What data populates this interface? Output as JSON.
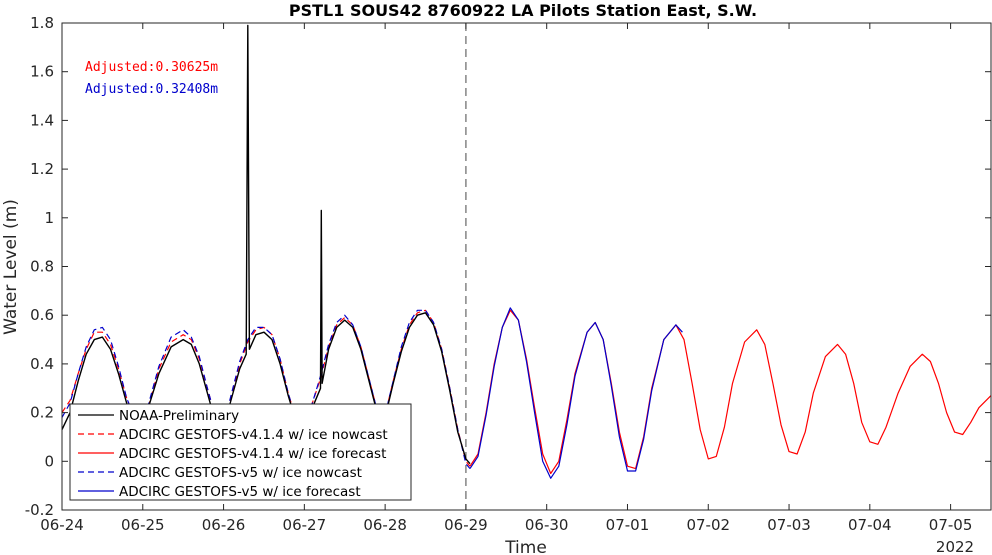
{
  "chart_data": {
    "type": "line",
    "title": "PSTL1 SOUS42 8760922 LA Pilots Station East, S.W.",
    "xlabel": "Time",
    "ylabel": "Water Level (m)",
    "x_start": "06-24",
    "x_range_days": [
      0,
      11.5
    ],
    "xtick_labels": [
      "06-24",
      "06-25",
      "06-26",
      "06-27",
      "06-28",
      "06-29",
      "06-30",
      "07-01",
      "07-02",
      "07-03",
      "07-04",
      "07-05"
    ],
    "xtick_days": [
      0,
      1,
      2,
      3,
      4,
      5,
      6,
      7,
      8,
      9,
      10,
      11
    ],
    "x_year_label": "2022",
    "ylim": [
      -0.2,
      1.8
    ],
    "yticks": [
      -0.2,
      0,
      0.2,
      0.4,
      0.6,
      0.8,
      1,
      1.2,
      1.4,
      1.6,
      1.8
    ],
    "ytick_labels": [
      "-0.2",
      "0",
      "0.2",
      "0.4",
      "0.6",
      "0.8",
      "1",
      "1.2",
      "1.4",
      "1.6",
      "1.8"
    ],
    "vline_day": 5,
    "grid": false,
    "legend_position": "bottom-left",
    "annotations": [
      {
        "text": "Adjusted:0.30625m",
        "color": "#ff0000"
      },
      {
        "text": "Adjusted:0.32408m",
        "color": "#0000cc"
      }
    ],
    "series": [
      {
        "name": "NOAA-Preliminary",
        "color": "#000000",
        "style": "solid",
        "points": [
          [
            0,
            0.13
          ],
          [
            0.1,
            0.2
          ],
          [
            0.2,
            0.33
          ],
          [
            0.3,
            0.44
          ],
          [
            0.4,
            0.5
          ],
          [
            0.5,
            0.51
          ],
          [
            0.6,
            0.46
          ],
          [
            0.7,
            0.36
          ],
          [
            0.8,
            0.24
          ],
          [
            0.95,
            0.12
          ],
          [
            1.05,
            0.2
          ],
          [
            1.2,
            0.36
          ],
          [
            1.35,
            0.47
          ],
          [
            1.5,
            0.5
          ],
          [
            1.6,
            0.48
          ],
          [
            1.7,
            0.4
          ],
          [
            1.8,
            0.28
          ],
          [
            1.9,
            0.16
          ],
          [
            2.0,
            0.14
          ],
          [
            2.1,
            0.26
          ],
          [
            2.2,
            0.38
          ],
          [
            2.28,
            0.44
          ],
          [
            2.3,
            1.79
          ],
          [
            2.32,
            0.46
          ],
          [
            2.4,
            0.52
          ],
          [
            2.5,
            0.53
          ],
          [
            2.6,
            0.5
          ],
          [
            2.7,
            0.4
          ],
          [
            2.8,
            0.27
          ],
          [
            2.9,
            0.16
          ],
          [
            3.0,
            0.15
          ],
          [
            3.1,
            0.22
          ],
          [
            3.2,
            0.3
          ],
          [
            3.21,
            1.03
          ],
          [
            3.22,
            0.32
          ],
          [
            3.3,
            0.46
          ],
          [
            3.4,
            0.55
          ],
          [
            3.5,
            0.58
          ],
          [
            3.6,
            0.55
          ],
          [
            3.7,
            0.46
          ],
          [
            3.8,
            0.33
          ],
          [
            3.9,
            0.2
          ],
          [
            4.0,
            0.18
          ],
          [
            4.1,
            0.32
          ],
          [
            4.2,
            0.45
          ],
          [
            4.3,
            0.55
          ],
          [
            4.4,
            0.6
          ],
          [
            4.5,
            0.61
          ],
          [
            4.6,
            0.56
          ],
          [
            4.7,
            0.45
          ],
          [
            4.8,
            0.29
          ],
          [
            4.9,
            0.12
          ],
          [
            5.0,
            0.01
          ],
          [
            5.05,
            -0.01
          ]
        ]
      },
      {
        "name": "ADCIRC GESTOFS-v4.1.4 w/ ice nowcast",
        "color": "#ff0000",
        "style": "dashed",
        "points": [
          [
            0,
            0.2
          ],
          [
            0.1,
            0.25
          ],
          [
            0.2,
            0.36
          ],
          [
            0.3,
            0.46
          ],
          [
            0.4,
            0.53
          ],
          [
            0.5,
            0.53
          ],
          [
            0.6,
            0.48
          ],
          [
            0.7,
            0.38
          ],
          [
            0.8,
            0.26
          ],
          [
            0.95,
            0.14
          ],
          [
            1.05,
            0.2
          ],
          [
            1.2,
            0.38
          ],
          [
            1.35,
            0.49
          ],
          [
            1.5,
            0.52
          ],
          [
            1.6,
            0.5
          ],
          [
            1.7,
            0.42
          ],
          [
            1.8,
            0.3
          ],
          [
            1.9,
            0.18
          ],
          [
            2.0,
            0.15
          ],
          [
            2.1,
            0.27
          ],
          [
            2.2,
            0.4
          ],
          [
            2.3,
            0.49
          ],
          [
            2.4,
            0.54
          ],
          [
            2.5,
            0.55
          ],
          [
            2.6,
            0.52
          ],
          [
            2.7,
            0.42
          ],
          [
            2.8,
            0.28
          ],
          [
            2.9,
            0.17
          ],
          [
            3.0,
            0.16
          ],
          [
            3.1,
            0.24
          ],
          [
            3.2,
            0.34
          ],
          [
            3.3,
            0.47
          ],
          [
            3.4,
            0.56
          ],
          [
            3.5,
            0.59
          ],
          [
            3.6,
            0.56
          ],
          [
            3.7,
            0.47
          ],
          [
            3.8,
            0.34
          ],
          [
            3.9,
            0.21
          ],
          [
            4.0,
            0.19
          ],
          [
            4.1,
            0.33
          ],
          [
            4.2,
            0.46
          ],
          [
            4.3,
            0.56
          ],
          [
            4.4,
            0.61
          ],
          [
            4.5,
            0.62
          ],
          [
            4.6,
            0.57
          ],
          [
            4.7,
            0.46
          ],
          [
            4.8,
            0.3
          ],
          [
            4.9,
            0.13
          ],
          [
            5.0,
            0.0
          ],
          [
            5.05,
            -0.02
          ]
        ]
      },
      {
        "name": "ADCIRC GESTOFS-v4.1.4 w/ ice forecast",
        "color": "#ff0000",
        "style": "solid",
        "points": [
          [
            5.05,
            -0.02
          ],
          [
            5.15,
            0.03
          ],
          [
            5.25,
            0.2
          ],
          [
            5.35,
            0.4
          ],
          [
            5.45,
            0.55
          ],
          [
            5.55,
            0.62
          ],
          [
            5.65,
            0.58
          ],
          [
            5.75,
            0.42
          ],
          [
            5.85,
            0.22
          ],
          [
            5.95,
            0.03
          ],
          [
            6.05,
            -0.05
          ],
          [
            6.15,
            0.0
          ],
          [
            6.25,
            0.17
          ],
          [
            6.35,
            0.36
          ],
          [
            6.5,
            0.53
          ],
          [
            6.6,
            0.57
          ],
          [
            6.7,
            0.5
          ],
          [
            6.8,
            0.32
          ],
          [
            6.9,
            0.12
          ],
          [
            7.0,
            -0.02
          ],
          [
            7.1,
            -0.03
          ],
          [
            7.2,
            0.1
          ],
          [
            7.3,
            0.3
          ],
          [
            7.45,
            0.5
          ],
          [
            7.6,
            0.56
          ],
          [
            7.7,
            0.5
          ],
          [
            7.8,
            0.32
          ],
          [
            7.9,
            0.13
          ],
          [
            8.0,
            0.01
          ],
          [
            8.1,
            0.02
          ],
          [
            8.2,
            0.14
          ],
          [
            8.3,
            0.32
          ],
          [
            8.45,
            0.49
          ],
          [
            8.6,
            0.54
          ],
          [
            8.7,
            0.48
          ],
          [
            8.8,
            0.32
          ],
          [
            8.9,
            0.15
          ],
          [
            9.0,
            0.04
          ],
          [
            9.1,
            0.03
          ],
          [
            9.2,
            0.12
          ],
          [
            9.3,
            0.28
          ],
          [
            9.45,
            0.43
          ],
          [
            9.6,
            0.48
          ],
          [
            9.7,
            0.44
          ],
          [
            9.8,
            0.32
          ],
          [
            9.9,
            0.16
          ],
          [
            10.0,
            0.08
          ],
          [
            10.1,
            0.07
          ],
          [
            10.2,
            0.14
          ],
          [
            10.35,
            0.28
          ],
          [
            10.5,
            0.39
          ],
          [
            10.65,
            0.44
          ],
          [
            10.75,
            0.41
          ],
          [
            10.85,
            0.32
          ],
          [
            10.95,
            0.2
          ],
          [
            11.05,
            0.12
          ],
          [
            11.15,
            0.11
          ],
          [
            11.25,
            0.16
          ],
          [
            11.35,
            0.22
          ],
          [
            11.5,
            0.27
          ]
        ]
      },
      {
        "name": "ADCIRC GESTOFS-v5 w/ ice nowcast",
        "color": "#0000cc",
        "style": "dashed",
        "points": [
          [
            0,
            0.18
          ],
          [
            0.1,
            0.24
          ],
          [
            0.2,
            0.36
          ],
          [
            0.3,
            0.47
          ],
          [
            0.4,
            0.54
          ],
          [
            0.5,
            0.55
          ],
          [
            0.6,
            0.5
          ],
          [
            0.7,
            0.39
          ],
          [
            0.8,
            0.26
          ],
          [
            0.95,
            0.14
          ],
          [
            1.05,
            0.21
          ],
          [
            1.2,
            0.39
          ],
          [
            1.35,
            0.51
          ],
          [
            1.5,
            0.54
          ],
          [
            1.6,
            0.51
          ],
          [
            1.7,
            0.43
          ],
          [
            1.8,
            0.3
          ],
          [
            1.9,
            0.18
          ],
          [
            2.0,
            0.15
          ],
          [
            2.1,
            0.28
          ],
          [
            2.2,
            0.41
          ],
          [
            2.3,
            0.5
          ],
          [
            2.4,
            0.55
          ],
          [
            2.5,
            0.55
          ],
          [
            2.6,
            0.52
          ],
          [
            2.7,
            0.42
          ],
          [
            2.8,
            0.28
          ],
          [
            2.9,
            0.17
          ],
          [
            3.0,
            0.16
          ],
          [
            3.1,
            0.24
          ],
          [
            3.2,
            0.35
          ],
          [
            3.3,
            0.48
          ],
          [
            3.4,
            0.57
          ],
          [
            3.5,
            0.6
          ],
          [
            3.6,
            0.56
          ],
          [
            3.7,
            0.47
          ],
          [
            3.8,
            0.34
          ],
          [
            3.9,
            0.21
          ],
          [
            4.0,
            0.19
          ],
          [
            4.1,
            0.33
          ],
          [
            4.2,
            0.47
          ],
          [
            4.3,
            0.57
          ],
          [
            4.4,
            0.62
          ],
          [
            4.5,
            0.62
          ],
          [
            4.6,
            0.57
          ],
          [
            4.7,
            0.46
          ],
          [
            4.8,
            0.3
          ],
          [
            4.9,
            0.13
          ],
          [
            5.0,
            -0.01
          ],
          [
            5.05,
            -0.03
          ]
        ]
      },
      {
        "name": "ADCIRC GESTOFS-v5 w/ ice forecast",
        "color": "#0000cc",
        "style": "solid",
        "points": [
          [
            5.05,
            -0.03
          ],
          [
            5.15,
            0.02
          ],
          [
            5.25,
            0.19
          ],
          [
            5.35,
            0.39
          ],
          [
            5.45,
            0.55
          ],
          [
            5.55,
            0.63
          ],
          [
            5.65,
            0.58
          ],
          [
            5.75,
            0.41
          ],
          [
            5.85,
            0.2
          ],
          [
            5.95,
            0.0
          ],
          [
            6.05,
            -0.07
          ],
          [
            6.15,
            -0.02
          ],
          [
            6.25,
            0.15
          ],
          [
            6.35,
            0.35
          ],
          [
            6.5,
            0.53
          ],
          [
            6.6,
            0.57
          ],
          [
            6.7,
            0.5
          ],
          [
            6.8,
            0.31
          ],
          [
            6.9,
            0.1
          ],
          [
            7.0,
            -0.04
          ],
          [
            7.1,
            -0.04
          ],
          [
            7.2,
            0.09
          ],
          [
            7.3,
            0.29
          ],
          [
            7.45,
            0.5
          ],
          [
            7.6,
            0.56
          ],
          [
            7.68,
            0.53
          ]
        ]
      }
    ]
  }
}
